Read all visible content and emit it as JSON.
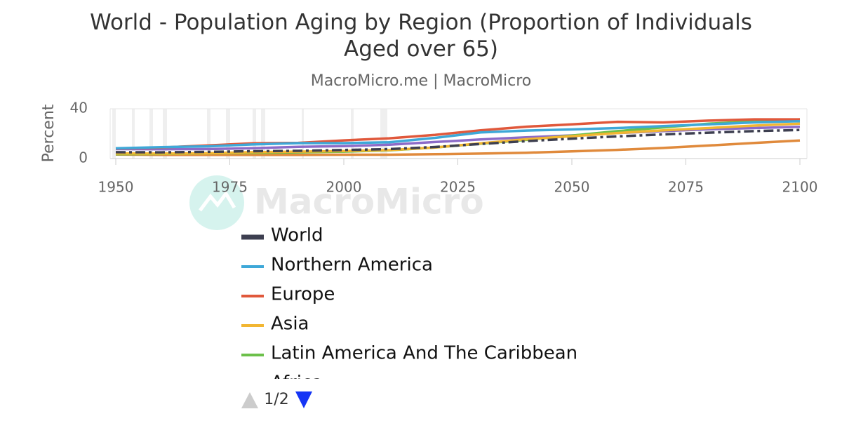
{
  "chart_data": {
    "type": "line",
    "title": "World - Population Aging by Region (Proportion of Individuals Aged over 65)",
    "subtitle": "MacroMicro.me | MacroMicro",
    "watermark": "MacroMicro",
    "y_label": "Percent",
    "x": [
      1950,
      1960,
      1970,
      1980,
      1990,
      2000,
      2010,
      2020,
      2030,
      2040,
      2050,
      2060,
      2070,
      2080,
      2090,
      2100
    ],
    "xlim": [
      1950,
      2100
    ],
    "xticks": [
      1950,
      1975,
      2000,
      2025,
      2050,
      2075,
      2100
    ],
    "ylim": [
      0,
      40
    ],
    "yticks": [
      0,
      40
    ],
    "grid": true,
    "legend_page": "1/2",
    "series": [
      {
        "name": "World",
        "color": "#3d3f50",
        "dash": "dashdot",
        "values": [
          5.1,
          5.0,
          5.4,
          5.9,
          6.2,
          6.9,
          7.6,
          9.3,
          11.7,
          14.0,
          16.0,
          17.8,
          19.4,
          20.8,
          22.0,
          23.0
        ]
      },
      {
        "name": "Northern America",
        "color": "#3ea8d8",
        "values": [
          8.2,
          9.2,
          9.8,
          11.3,
          12.4,
          12.4,
          13.1,
          16.6,
          21.0,
          22.5,
          23.4,
          24.5,
          26.0,
          27.5,
          29.0,
          30.0
        ]
      },
      {
        "name": "Europe",
        "color": "#e0583b",
        "values": [
          8.0,
          8.9,
          10.5,
          12.3,
          12.6,
          14.6,
          16.3,
          19.0,
          22.7,
          25.6,
          27.5,
          29.5,
          29.0,
          30.5,
          31.5,
          31.5
        ]
      },
      {
        "name": "Asia",
        "color": "#f2b632",
        "values": [
          4.1,
          4.0,
          4.3,
          5.1,
          5.6,
          6.0,
          6.8,
          8.9,
          12.2,
          15.5,
          18.0,
          20.5,
          22.7,
          24.5,
          26.5,
          28.0
        ]
      },
      {
        "name": "Latin America And The Caribbean",
        "color": "#6cc04a",
        "values": [
          3.5,
          3.7,
          4.2,
          4.6,
          5.0,
          5.6,
          6.6,
          8.9,
          12.0,
          15.0,
          18.5,
          22.0,
          25.0,
          28.0,
          30.0,
          31.5
        ]
      },
      {
        "name": "Africa",
        "color": "#e08a3c",
        "values": [
          3.2,
          3.0,
          3.0,
          3.0,
          3.0,
          3.1,
          3.1,
          3.5,
          4.0,
          4.7,
          5.8,
          7.0,
          8.5,
          10.5,
          12.5,
          14.5
        ]
      },
      {
        "color": "#8c6bc8",
        "values": [
          7.6,
          7.5,
          7.6,
          8.3,
          9.4,
          10.0,
          11.1,
          13.3,
          15.3,
          17.0,
          18.6,
          20.5,
          22.0,
          23.5,
          24.5,
          25.5
        ]
      }
    ]
  }
}
